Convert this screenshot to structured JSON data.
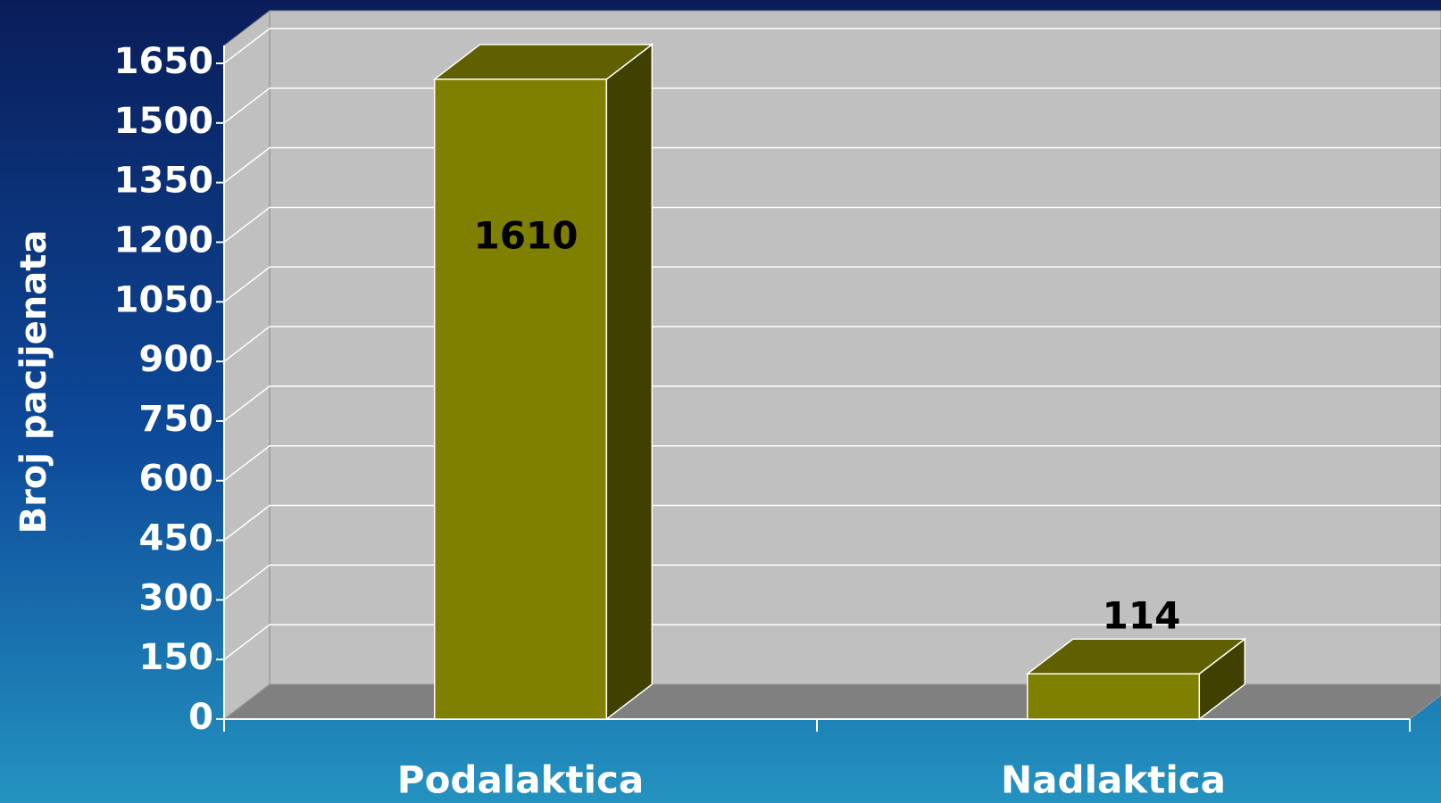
{
  "chart_data": {
    "type": "bar3d",
    "y_label": "Broj pacijenata",
    "categories": [
      "Podalaktica",
      "Nadlaktica"
    ],
    "values": [
      1610,
      114
    ],
    "color": "#808000",
    "ylim": [
      0,
      1650
    ],
    "yticks": [
      0,
      150,
      300,
      450,
      600,
      750,
      900,
      1050,
      1200,
      1350,
      1500,
      1650
    ],
    "grid": true
  }
}
